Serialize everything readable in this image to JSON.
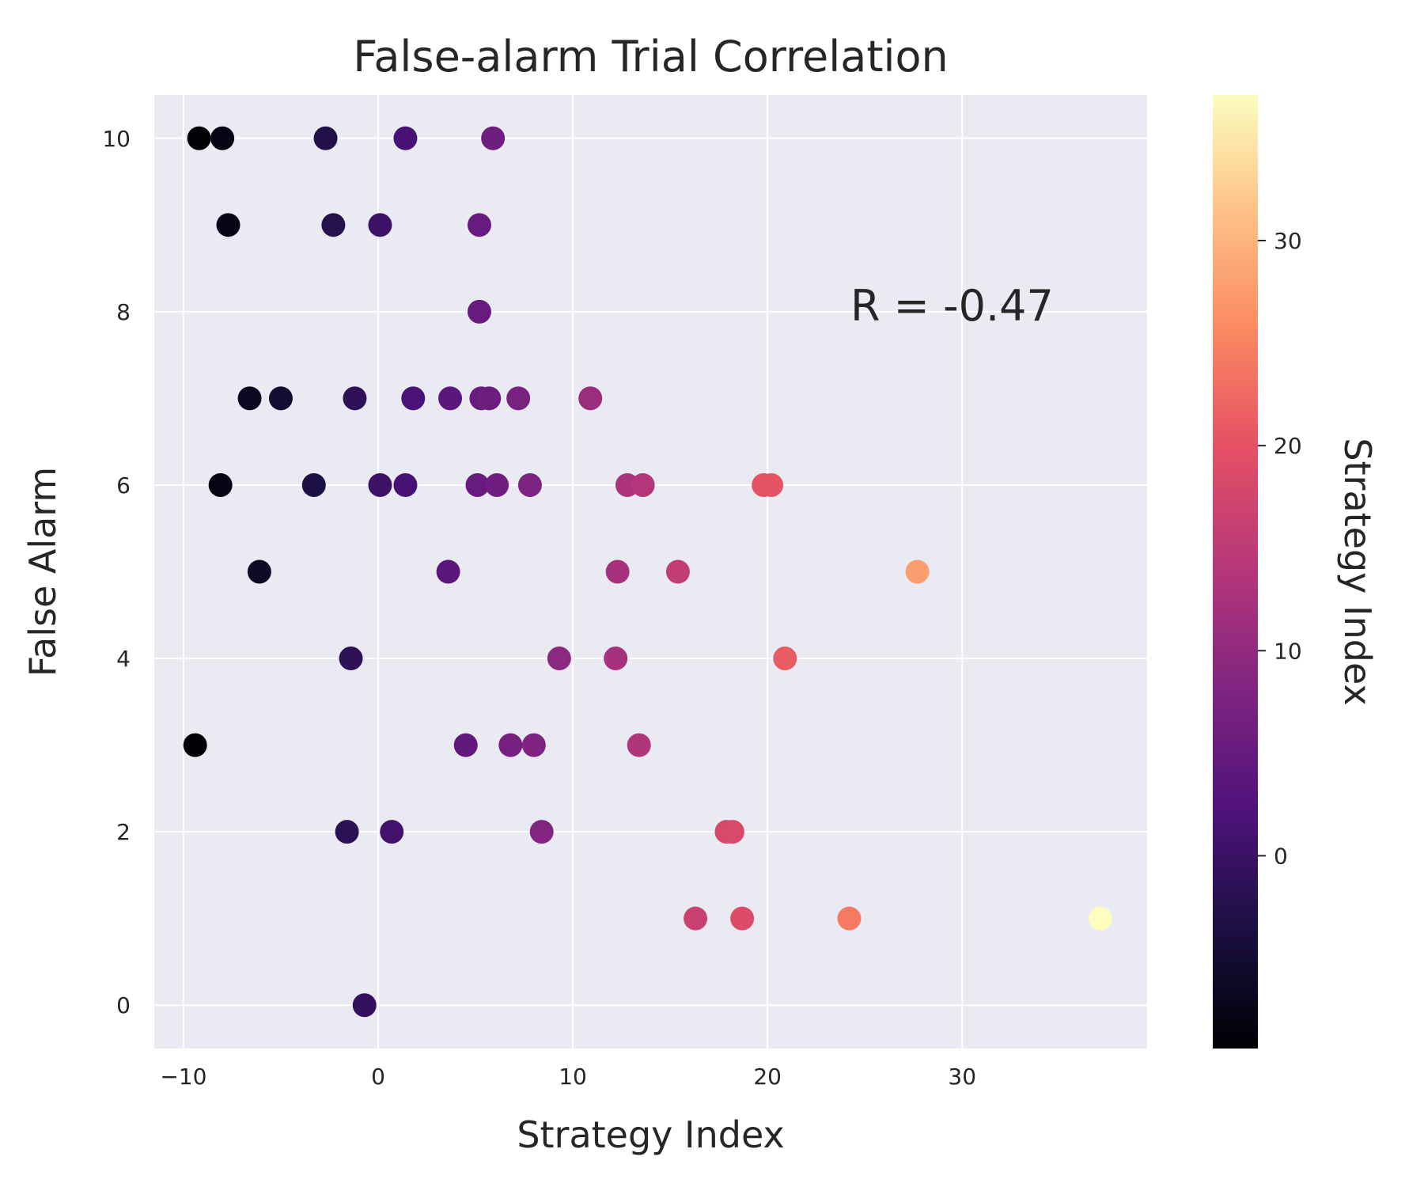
{
  "chart_data": {
    "type": "scatter",
    "title": "False-alarm Trial Correlation",
    "xlabel": "Strategy Index",
    "ylabel": "False Alarm",
    "xlim": [
      -11.5,
      39.5
    ],
    "ylim": [
      -0.5,
      10.5
    ],
    "xticks": [
      -10,
      0,
      10,
      20,
      30
    ],
    "xtick_labels": [
      "−10",
      "0",
      "10",
      "20",
      "30"
    ],
    "yticks": [
      0,
      2,
      4,
      6,
      8,
      10
    ],
    "ytick_labels": [
      "0",
      "2",
      "4",
      "6",
      "8",
      "10"
    ],
    "grid": true,
    "colormap": "magma",
    "background": "#EAEAF2",
    "colorbar": {
      "label": "Strategy Index",
      "vmin": -9.4,
      "vmax": 37.1,
      "ticks": [
        0,
        10,
        20,
        30
      ],
      "tick_labels": [
        "0",
        "10",
        "20",
        "30"
      ]
    },
    "annotation": "R = -0.47",
    "points": [
      {
        "x": -9.2,
        "y": 10
      },
      {
        "x": -8.0,
        "y": 10
      },
      {
        "x": -2.7,
        "y": 10
      },
      {
        "x": 1.4,
        "y": 10
      },
      {
        "x": 5.9,
        "y": 10
      },
      {
        "x": -7.7,
        "y": 9
      },
      {
        "x": -2.3,
        "y": 9
      },
      {
        "x": 0.1,
        "y": 9
      },
      {
        "x": 5.2,
        "y": 9
      },
      {
        "x": 5.2,
        "y": 8
      },
      {
        "x": -6.6,
        "y": 7
      },
      {
        "x": -5.0,
        "y": 7
      },
      {
        "x": -1.2,
        "y": 7
      },
      {
        "x": 1.8,
        "y": 7
      },
      {
        "x": 3.7,
        "y": 7
      },
      {
        "x": 5.3,
        "y": 7
      },
      {
        "x": 5.7,
        "y": 7
      },
      {
        "x": 7.2,
        "y": 7
      },
      {
        "x": 10.9,
        "y": 7
      },
      {
        "x": -8.1,
        "y": 6
      },
      {
        "x": -3.3,
        "y": 6
      },
      {
        "x": 0.1,
        "y": 6
      },
      {
        "x": 1.4,
        "y": 6
      },
      {
        "x": 5.1,
        "y": 6
      },
      {
        "x": 6.1,
        "y": 6
      },
      {
        "x": 7.8,
        "y": 6
      },
      {
        "x": 12.8,
        "y": 6
      },
      {
        "x": 13.6,
        "y": 6
      },
      {
        "x": 19.8,
        "y": 6
      },
      {
        "x": 20.2,
        "y": 6
      },
      {
        "x": -6.1,
        "y": 5
      },
      {
        "x": 3.6,
        "y": 5
      },
      {
        "x": 12.3,
        "y": 5
      },
      {
        "x": 15.4,
        "y": 5
      },
      {
        "x": 27.7,
        "y": 5
      },
      {
        "x": -1.4,
        "y": 4
      },
      {
        "x": 9.3,
        "y": 4
      },
      {
        "x": 12.2,
        "y": 4
      },
      {
        "x": 20.9,
        "y": 4
      },
      {
        "x": -9.4,
        "y": 3
      },
      {
        "x": 4.5,
        "y": 3
      },
      {
        "x": 6.8,
        "y": 3
      },
      {
        "x": 8.0,
        "y": 3
      },
      {
        "x": 13.4,
        "y": 3
      },
      {
        "x": -1.6,
        "y": 2
      },
      {
        "x": 0.7,
        "y": 2
      },
      {
        "x": 8.4,
        "y": 2
      },
      {
        "x": 17.9,
        "y": 2
      },
      {
        "x": 18.2,
        "y": 2
      },
      {
        "x": 16.3,
        "y": 1
      },
      {
        "x": 18.7,
        "y": 1
      },
      {
        "x": 24.2,
        "y": 1
      },
      {
        "x": 37.1,
        "y": 1
      },
      {
        "x": -0.7,
        "y": 0
      }
    ]
  }
}
